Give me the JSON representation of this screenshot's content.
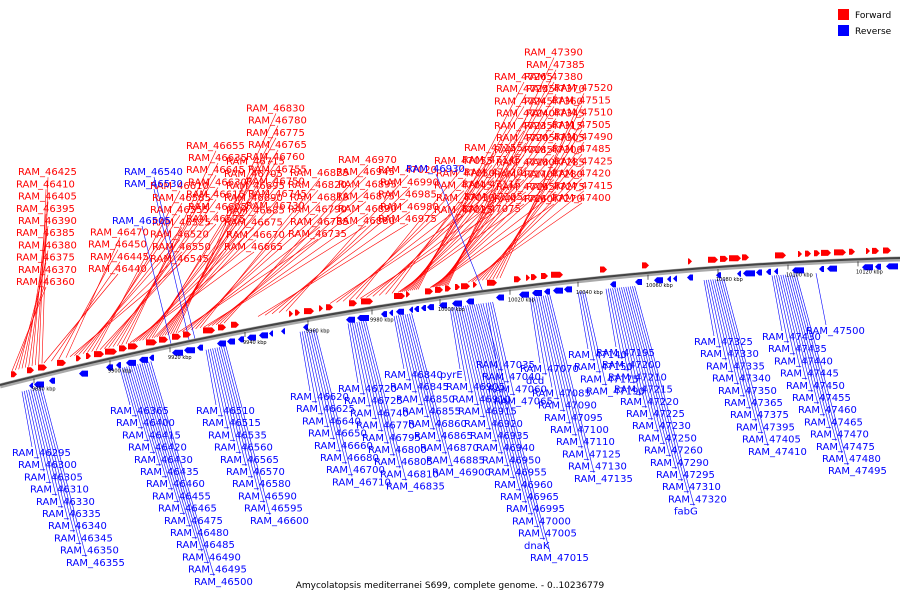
{
  "legend": [
    {
      "label": "Forward",
      "color": "#ff0000"
    },
    {
      "label": "Reverse",
      "color": "#0000ff"
    }
  ],
  "footer": "Amycolatopsis mediterranei S699, complete genome. - 0..10236779",
  "ticks": [
    "9880 kbp",
    "9900 kbp",
    "9920 kbp",
    "9940 kbp",
    "9960 kbp",
    "9980 kbp",
    "10000 kbp",
    "10020 kbp",
    "10040 kbp",
    "10060 kbp",
    "10080 kbp",
    "10100 kbp",
    "10120 kbp"
  ],
  "forward_labels": [
    "RAM_46360",
    "RAM_46370",
    "RAM_46375",
    "RAM_46380",
    "RAM_46385",
    "RAM_46390",
    "RAM_46395",
    "RAM_46405",
    "RAM_46410",
    "RAM_46425",
    "RAM_46440",
    "RAM_46445",
    "RAM_46450",
    "RAM_46470",
    "RAM_46545",
    "RAM_46550",
    "RAM_46520",
    "RAM_46525",
    "RAM_46555",
    "RAM_46585",
    "RAM_46610",
    "RAM_46575",
    "RAM_46605",
    "RAM_46615",
    "RAM_46630",
    "RAM_46645",
    "RAM_46635",
    "RAM_46655",
    "RAM_46665",
    "RAM_46670",
    "RAM_46675",
    "RAM_46685",
    "RAM_46690",
    "RAM_46695",
    "RAM_46705",
    "RAM_46715",
    "RAM_46730",
    "RAM_46745",
    "RAM_46750",
    "RAM_46755",
    "RAM_46760",
    "RAM_46765",
    "RAM_46775",
    "RAM_46780",
    "RAM_46830",
    "RAM_46735",
    "RAM_46785",
    "RAM_46790",
    "RAM_46815",
    "RAM_46820",
    "RAM_46825",
    "RAM_46880",
    "RAM_46890",
    "RAM_46875",
    "RAM_46895",
    "RAM_46945",
    "RAM_46970",
    "RAM_46975",
    "RAM_46980",
    "RAM_46985",
    "RAM_46990",
    "RAM_47020",
    "RAM_47025",
    "RAM_47030",
    "RAM_47045",
    "RAM_47050",
    "RAM_47055",
    "RAM_47075",
    "RAM_47105",
    "RAM_47115",
    "RAM_47120",
    "RAM_47145",
    "RAM_47155",
    "RAM_47160",
    "RAM_47165",
    "RAM_47170",
    "RAM_47180",
    "RAM_47185",
    "RAM_47205",
    "RAM_47235",
    "RAM_47240",
    "RAM_47245",
    "RAM_47255",
    "RAM_47265",
    "RAM_47270",
    "RAM_47275",
    "RAM_47280",
    "RAM_47285",
    "RAM_47300",
    "RAM_47305",
    "RAM_47315",
    "RAM_47345",
    "RAM_47360",
    "RAM_47370",
    "RAM_47380",
    "RAM_47385",
    "RAM_47390",
    "RAM_47400",
    "RAM_47415",
    "RAM_47420",
    "RAM_47425",
    "RAM_47485",
    "RAM_47490",
    "RAM_47505",
    "RAM_47510",
    "RAM_47515",
    "RAM_47520"
  ],
  "reverse_labels_top": [
    "RAM_46505",
    "RAM_46530",
    "RAM_46540",
    "RAM_46930"
  ],
  "reverse_labels": [
    "RAM_46295",
    "RAM_46300",
    "RAM_46305",
    "RAM_46310",
    "RAM_46330",
    "RAM_46335",
    "RAM_46340",
    "RAM_46345",
    "RAM_46350",
    "RAM_46355",
    "RAM_46365",
    "RAM_46400",
    "RAM_46415",
    "RAM_46420",
    "RAM_46430",
    "RAM_46435",
    "RAM_46460",
    "RAM_46455",
    "RAM_46465",
    "RAM_46475",
    "RAM_46480",
    "RAM_46485",
    "RAM_46490",
    "RAM_46495",
    "RAM_46500",
    "RAM_46510",
    "RAM_46515",
    "RAM_46535",
    "RAM_46560",
    "RAM_46565",
    "RAM_46570",
    "RAM_46580",
    "RAM_46590",
    "RAM_46595",
    "RAM_46600",
    "RAM_46620",
    "RAM_46625",
    "RAM_46640",
    "RAM_46650",
    "RAM_46660",
    "RAM_46680",
    "RAM_46700",
    "RAM_46710",
    "RAM_46720",
    "RAM_46725",
    "RAM_46740",
    "RAM_46770",
    "RAM_46795",
    "RAM_46800",
    "RAM_46805",
    "RAM_46810",
    "RAM_46835",
    "RAM_46840",
    "RAM_46845",
    "RAM_46850",
    "RAM_46855",
    "RAM_46860",
    "RAM_46865",
    "RAM_46870",
    "RAM_46885",
    "RAM_46900",
    "pyrE",
    "RAM_46905",
    "RAM_46910",
    "RAM_46915",
    "RAM_46920",
    "RAM_46935",
    "RAM_46940",
    "RAM_46950",
    "RAM_46955",
    "RAM_46960",
    "RAM_46965",
    "RAM_46995",
    "RAM_47000",
    "RAM_47005",
    "dnaK",
    "RAM_47015",
    "RAM_47035",
    "RAM_47040",
    "RAM_47060",
    "RAM_47065",
    "RAM_47070",
    "dcd",
    "RAM_47085",
    "RAM_47090",
    "RAM_47095",
    "RAM_47100",
    "RAM_47110",
    "RAM_47125",
    "RAM_47130",
    "RAM_47135",
    "RAM_47140",
    "RAM_47150",
    "RAM_47175",
    "RAM_47190",
    "RAM_47195",
    "RAM_47200",
    "RAM_47210",
    "RAM_47215",
    "RAM_47220",
    "RAM_47225",
    "RAM_47230",
    "RAM_47250",
    "RAM_47260",
    "RAM_47290",
    "RAM_47295",
    "RAM_47310",
    "RAM_47320",
    "fabG",
    "RAM_47325",
    "RAM_47330",
    "RAM_47335",
    "RAM_47340",
    "RAM_47350",
    "RAM_47365",
    "RAM_47375",
    "RAM_47395",
    "RAM_47405",
    "RAM_47410",
    "RAM_47430",
    "RAM_47435",
    "RAM_47440",
    "RAM_47445",
    "RAM_47450",
    "RAM_47455",
    "RAM_47460",
    "RAM_47465",
    "RAM_47470",
    "RAM_47475",
    "RAM_47480",
    "RAM_47495",
    "RAM_47500"
  ]
}
